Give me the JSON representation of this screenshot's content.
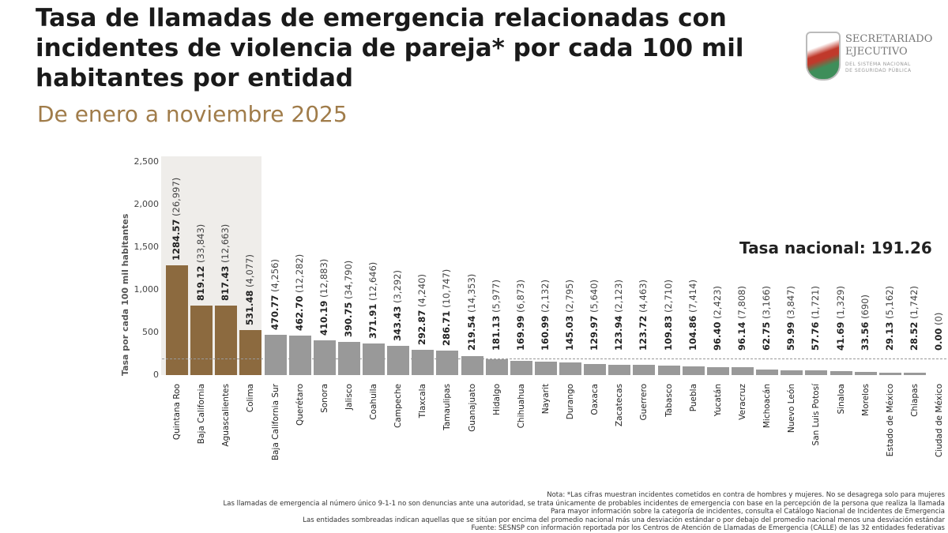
{
  "header": {
    "title": "Tasa de llamadas de emergencia relacionadas con incidentes de violencia de pareja* por cada 100 mil habitantes por entidad",
    "subtitle": "De enero a noviembre 2025",
    "logo_text": [
      "SECRETARIADO",
      "EJECUTIVO",
      "DEL SISTEMA NACIONAL",
      "DE SEGURIDAD PÚBLICA"
    ]
  },
  "chart_data": {
    "type": "bar",
    "title": "Tasa de llamadas de emergencia relacionadas con incidentes de violencia de pareja* por cada 100 mil habitantes por entidad",
    "ylabel": "Tasa por cada 100 mil habitantes",
    "ylim": [
      0,
      2500
    ],
    "yticks": [
      "0",
      "500",
      "1,000",
      "1,500",
      "2,000",
      "2,500"
    ],
    "grid": false,
    "categories": [
      "Quintana Roo",
      "Baja California",
      "Aguascalientes",
      "Colima",
      "Baja California Sur",
      "Querétaro",
      "Sonora",
      "Jalisco",
      "Coahuila",
      "Campeche",
      "Tlaxcala",
      "Tamaulipas",
      "Guanajuato",
      "Hidalgo",
      "Chihuahua",
      "Nayarit",
      "Durango",
      "Oaxaca",
      "Zacatecas",
      "Guerrero",
      "Tabasco",
      "Puebla",
      "Yucatán",
      "Veracruz",
      "Michoacán",
      "Nuevo León",
      "San Luis Potosí",
      "Sinaloa",
      "Morelos",
      "Estado de México",
      "Chiapas",
      "Ciudad de México"
    ],
    "values": [
      1284.57,
      819.12,
      817.43,
      531.48,
      470.77,
      462.7,
      410.19,
      390.75,
      371.91,
      343.43,
      292.87,
      286.71,
      219.54,
      181.13,
      169.99,
      160.99,
      145.03,
      129.97,
      123.94,
      123.72,
      109.83,
      104.86,
      96.4,
      96.14,
      62.75,
      59.99,
      57.76,
      41.69,
      33.56,
      29.13,
      28.52,
      0.0
    ],
    "value_labels": [
      "1284.57",
      "819.12",
      "817.43",
      "531.48",
      "470.77",
      "462.70",
      "410.19",
      "390.75",
      "371.91",
      "343.43",
      "292.87",
      "286.71",
      "219.54",
      "181.13",
      "169.99",
      "160.99",
      "145.03",
      "129.97",
      "123.94",
      "123.72",
      "109.83",
      "104.86",
      "96.40",
      "96.14",
      "62.75",
      "59.99",
      "57.76",
      "41.69",
      "33.56",
      "29.13",
      "28.52",
      "0.00"
    ],
    "counts": [
      "(26,997)",
      "(33,843)",
      "(12,663)",
      "(4,077)",
      "(4,256)",
      "(12,282)",
      "(12,883)",
      "(34,790)",
      "(12,646)",
      "(3,292)",
      "(4,240)",
      "(10,747)",
      "(14,353)",
      "(5,977)",
      "(6,873)",
      "(2,132)",
      "(2,795)",
      "(5,640)",
      "(2,123)",
      "(4,463)",
      "(2,710)",
      "(7,414)",
      "(2,423)",
      "(7,808)",
      "(3,166)",
      "(3,847)",
      "(1,721)",
      "(1,329)",
      "(690)",
      "(5,162)",
      "(1,742)",
      "(0)"
    ],
    "highlighted": [
      true,
      true,
      true,
      true,
      false,
      false,
      false,
      false,
      false,
      false,
      false,
      false,
      false,
      false,
      false,
      false,
      false,
      false,
      false,
      false,
      false,
      false,
      false,
      false,
      false,
      false,
      false,
      false,
      false,
      false,
      false,
      false
    ],
    "reference_line": {
      "value": 191.26,
      "label": "Tasa nacional: 191.26",
      "style": "dashed"
    },
    "colors": {
      "highlight": "#8c6a3f",
      "normal": "#999999",
      "shade": "#efedea",
      "reference": "#999999"
    }
  },
  "notes": [
    "Nota: *Las cifras muestran incidentes cometidos en contra de hombres y mujeres. No se desagrega solo para mujeres",
    "Las llamadas de emergencia al número único 9-1-1 no son denuncias ante una autoridad, se trata únicamente de probables incidentes de emergencia con base en la percepción de la persona que realiza la llamada",
    "Para mayor información sobre la categoría de incidentes, consulta el Catálogo Nacional de Incidentes de Emergencia",
    "Las entidades sombreadas indican aquellas que se sitúan por encima del promedio nacional más una desviación estándar o por debajo del promedio nacional menos una desviación estándar",
    "Fuente: SESNSP con información reportada por los Centros de Atención de Llamadas de Emergencia (CALLE) de las 32 entidades federativas"
  ]
}
